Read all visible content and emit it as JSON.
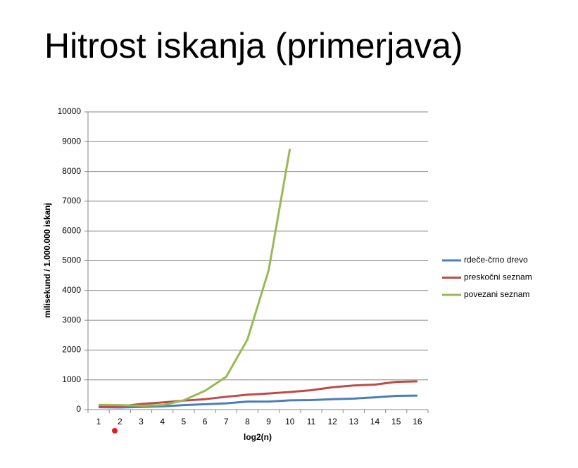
{
  "chart_data": {
    "type": "line",
    "title": "Hitrost iskanja (primerjava)",
    "xlabel": "log2(n)",
    "ylabel": "milisekund / 1.000.000 iskanj",
    "categories": [
      "1",
      "2",
      "3",
      "4",
      "5",
      "6",
      "7",
      "8",
      "9",
      "10",
      "11",
      "12",
      "13",
      "14",
      "15",
      "16"
    ],
    "series": [
      {
        "name": "rdeče-črno drevo",
        "color": "#4a7ebb",
        "values": [
          80,
          70,
          90,
          110,
          150,
          180,
          210,
          270,
          270,
          310,
          320,
          350,
          370,
          410,
          460,
          470
        ]
      },
      {
        "name": "preskočni seznam",
        "color": "#be4b48",
        "values": [
          100,
          110,
          190,
          240,
          300,
          350,
          430,
          500,
          540,
          590,
          650,
          750,
          810,
          840,
          930,
          950
        ]
      },
      {
        "name": "povezani seznam",
        "color": "#98b954",
        "values": [
          160,
          150,
          130,
          150,
          310,
          630,
          1100,
          2350,
          4680,
          8760,
          null,
          null,
          null,
          null,
          null,
          null
        ]
      }
    ],
    "ylim": [
      0,
      10000
    ],
    "yticks": [
      0,
      1000,
      2000,
      3000,
      4000,
      5000,
      6000,
      7000,
      8000,
      9000,
      10000
    ],
    "grid": true,
    "legend": "right"
  }
}
